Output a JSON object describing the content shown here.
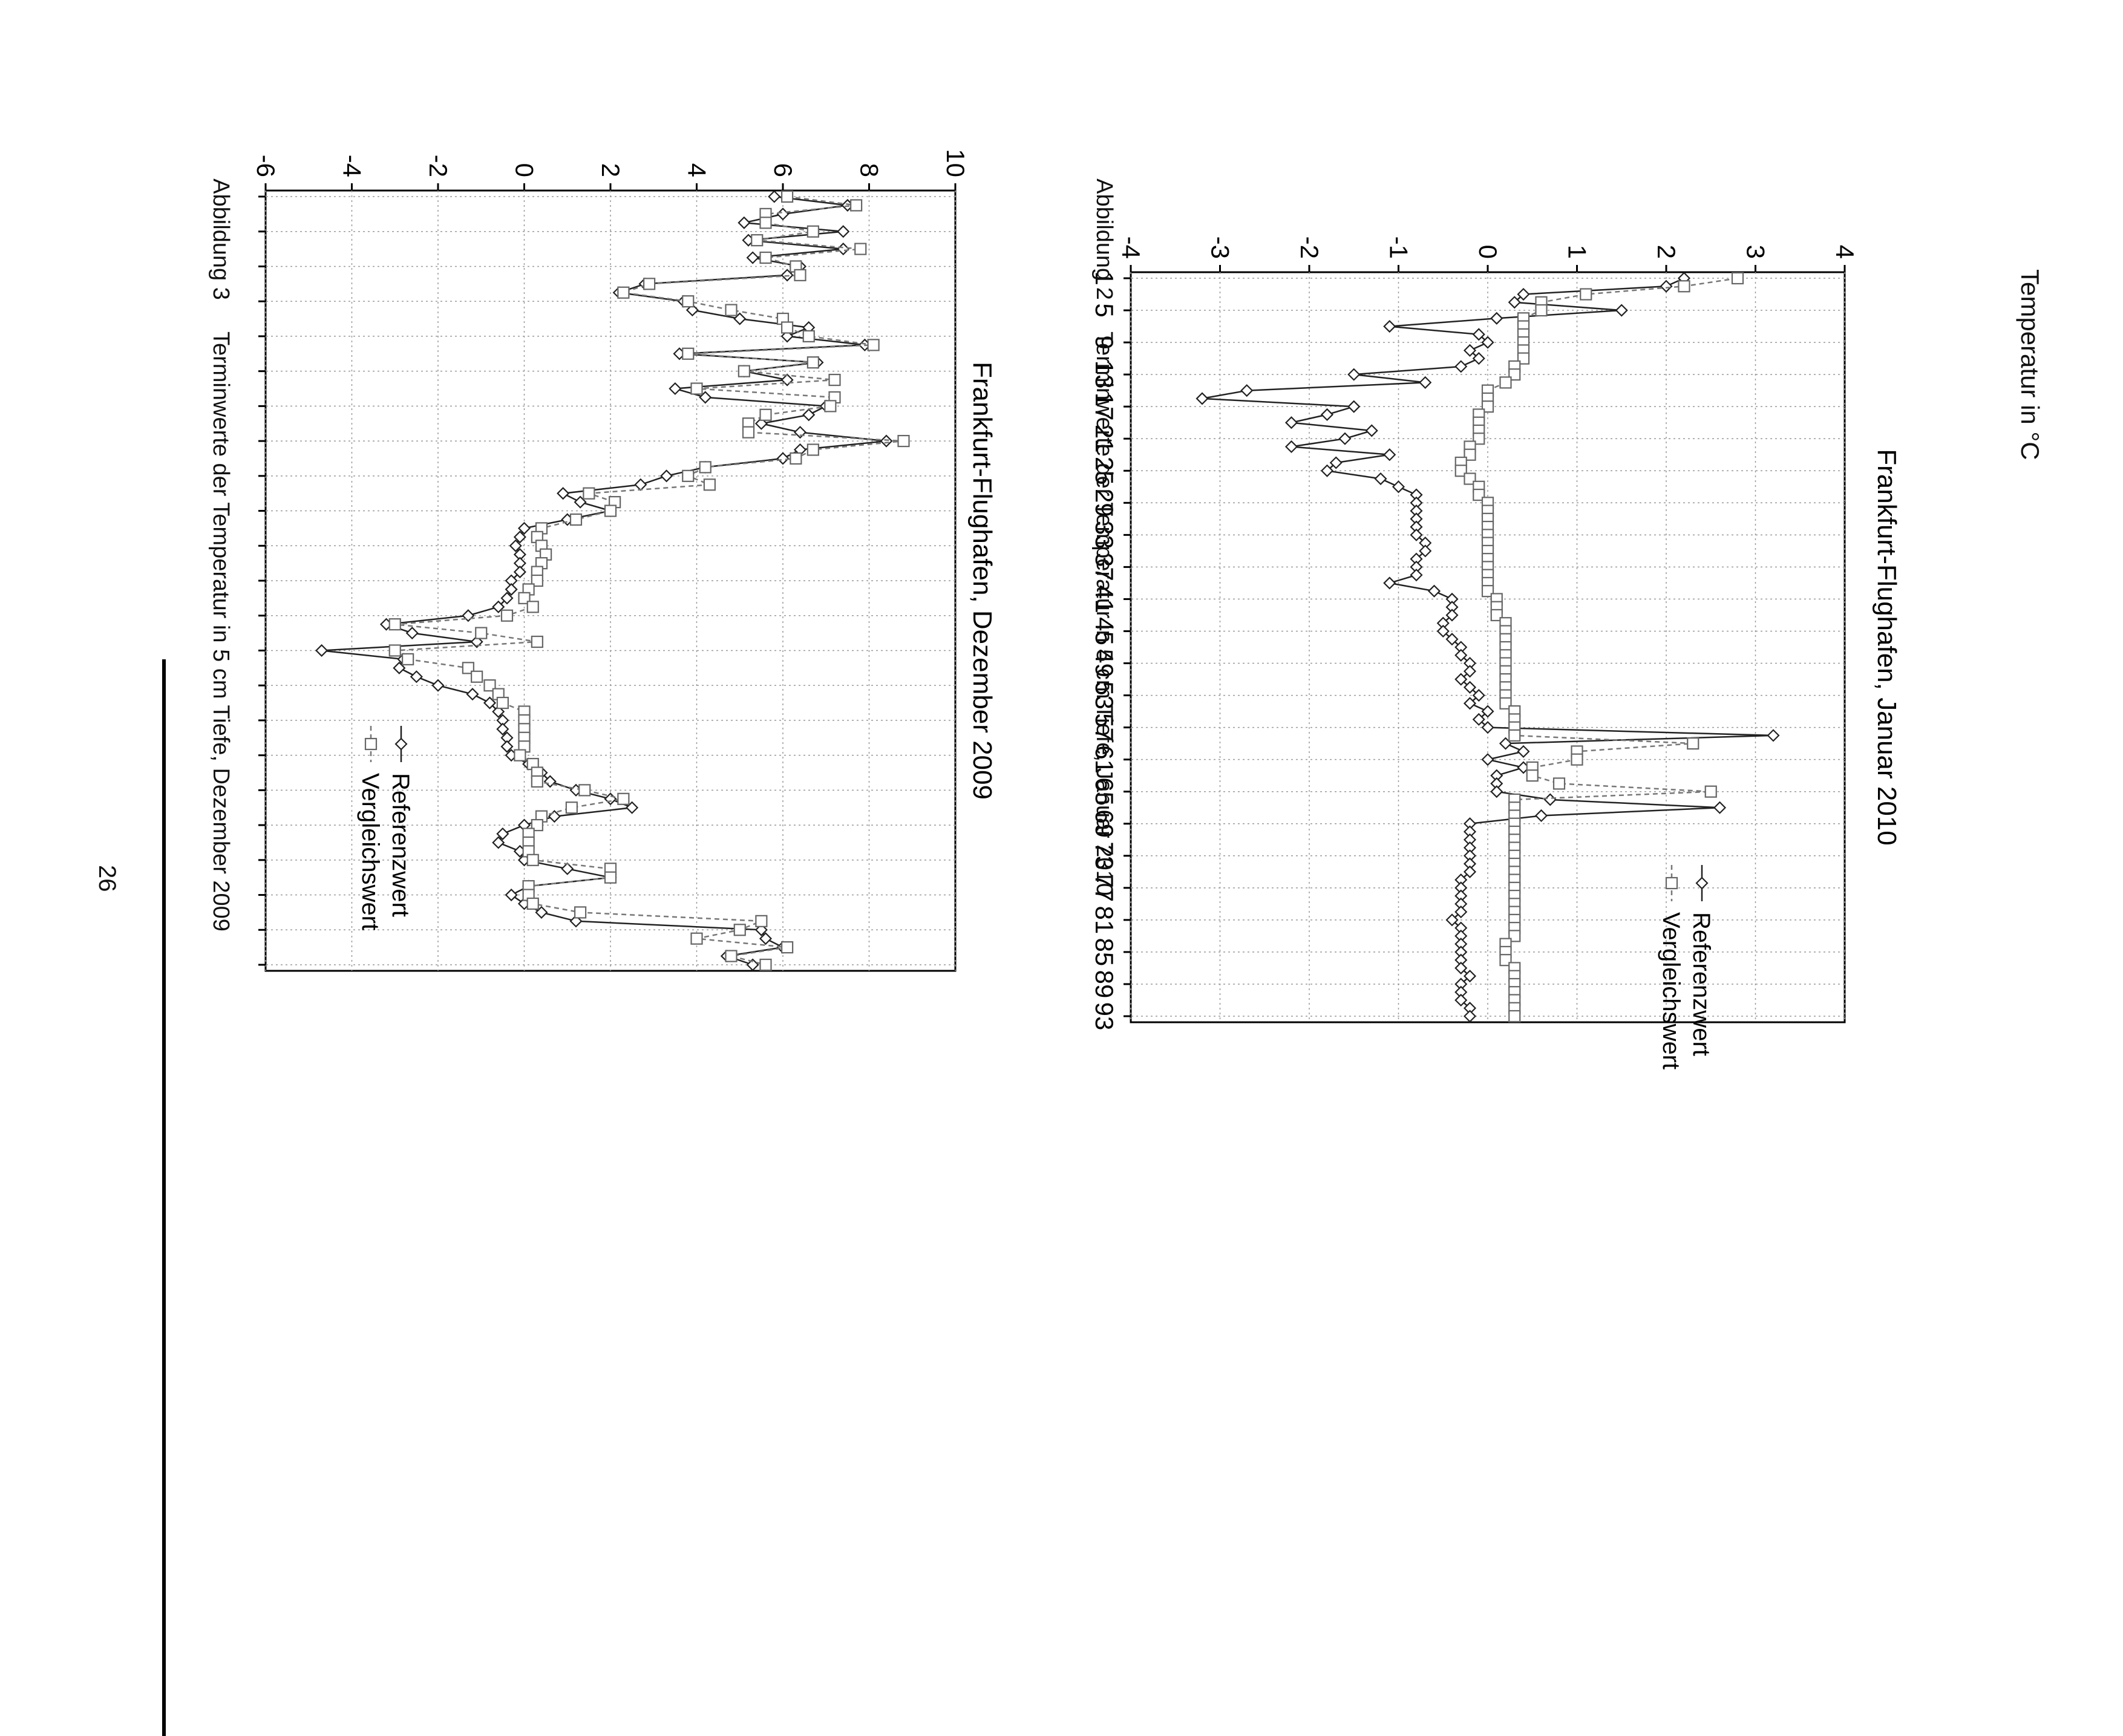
{
  "page": {
    "number": "26"
  },
  "chart_data": [
    {
      "type": "line",
      "title": "Frankfurt-Flughafen, Januar 2010",
      "ylabel": "Temperatur in °C",
      "xlabel": "",
      "caption_label": "Abbildung 2",
      "caption_text": "Terminwerte der Temperatur in 5 cm Tiefe, Januar 2010",
      "ylim": [
        -4,
        4
      ],
      "yticks": [
        "-4",
        "-3",
        "-2",
        "-1",
        "0",
        "1",
        "2",
        "3",
        "4"
      ],
      "xticks": [
        "1",
        "5",
        "9",
        "13",
        "17",
        "21",
        "25",
        "29",
        "33",
        "37",
        "41",
        "45",
        "49",
        "53",
        "57",
        "61",
        "65",
        "69",
        "73",
        "77",
        "81",
        "85",
        "89",
        "93"
      ],
      "xrange": [
        1,
        93
      ],
      "legend_position": "top-right",
      "series": [
        {
          "name": "Referenzwert",
          "style": "solid-diamond",
          "x": [
            1,
            2,
            3,
            4,
            5,
            6,
            7,
            8,
            9,
            10,
            11,
            12,
            13,
            14,
            15,
            16,
            17,
            18,
            19,
            20,
            21,
            22,
            23,
            24,
            25,
            26,
            27,
            28,
            29,
            30,
            31,
            32,
            33,
            34,
            35,
            36,
            37,
            38,
            39,
            40,
            41,
            42,
            43,
            44,
            45,
            46,
            47,
            48,
            49,
            50,
            51,
            52,
            53,
            54,
            55,
            56,
            57,
            58,
            59,
            60,
            61,
            62,
            63,
            64,
            65,
            66,
            67,
            68,
            69,
            70,
            71,
            72,
            73,
            74,
            75,
            76,
            77,
            78,
            79,
            80,
            81,
            82,
            83,
            84,
            85,
            86,
            87,
            88,
            89,
            90,
            91,
            92,
            93
          ],
          "values": [
            2.2,
            2.0,
            0.4,
            0.3,
            1.5,
            0.1,
            -1.1,
            -0.1,
            0.0,
            -0.2,
            -0.1,
            -0.3,
            -1.5,
            -0.7,
            -2.7,
            -3.2,
            -1.5,
            -1.8,
            -2.2,
            -1.3,
            -1.6,
            -2.2,
            -1.1,
            -1.7,
            -1.8,
            -1.2,
            -1.0,
            -0.8,
            -0.8,
            -0.8,
            -0.8,
            -0.8,
            -0.8,
            -0.7,
            -0.7,
            -0.8,
            -0.8,
            -0.8,
            -1.1,
            -0.6,
            -0.4,
            -0.4,
            -0.4,
            -0.5,
            -0.5,
            -0.4,
            -0.3,
            -0.3,
            -0.2,
            -0.2,
            -0.3,
            -0.2,
            -0.1,
            -0.2,
            0.0,
            -0.1,
            0.0,
            3.2,
            0.2,
            0.4,
            0.0,
            0.4,
            0.1,
            0.1,
            0.1,
            0.7,
            2.6,
            0.6,
            -0.2,
            -0.2,
            -0.2,
            -0.2,
            -0.2,
            -0.2,
            -0.2,
            -0.3,
            -0.3,
            -0.3,
            -0.3,
            -0.3,
            -0.4,
            -0.3,
            -0.3,
            -0.3,
            -0.3,
            -0.3,
            -0.3,
            -0.2,
            -0.3,
            -0.3,
            -0.3,
            -0.2,
            -0.2
          ]
        },
        {
          "name": "Vergleichswert",
          "style": "dashed-square",
          "x": [
            1,
            2,
            3,
            4,
            5,
            6,
            7,
            8,
            9,
            10,
            11,
            12,
            13,
            14,
            15,
            16,
            17,
            18,
            19,
            20,
            21,
            22,
            23,
            24,
            25,
            26,
            27,
            28,
            29,
            30,
            31,
            32,
            33,
            34,
            35,
            36,
            37,
            38,
            39,
            40,
            41,
            42,
            43,
            44,
            45,
            46,
            47,
            48,
            49,
            50,
            51,
            52,
            53,
            54,
            55,
            56,
            57,
            58,
            59,
            60,
            61,
            62,
            63,
            64,
            65,
            66,
            67,
            68,
            69,
            70,
            71,
            72,
            73,
            74,
            75,
            76,
            77,
            78,
            79,
            80,
            81,
            82,
            83,
            84,
            85,
            86,
            87,
            88,
            89,
            90,
            91,
            92,
            93
          ],
          "values": [
            2.8,
            2.2,
            1.1,
            0.6,
            0.6,
            0.4,
            0.4,
            0.4,
            0.4,
            0.4,
            0.4,
            0.3,
            0.3,
            0.2,
            0.0,
            0.0,
            0.0,
            -0.1,
            -0.1,
            -0.1,
            -0.1,
            -0.2,
            -0.2,
            -0.3,
            -0.3,
            -0.2,
            -0.1,
            -0.1,
            0.0,
            0.0,
            0.0,
            0.0,
            0.0,
            0.0,
            0.0,
            0.0,
            0.0,
            0.0,
            0.0,
            0.0,
            0.1,
            0.1,
            0.1,
            0.2,
            0.2,
            0.2,
            0.2,
            0.2,
            0.2,
            0.2,
            0.2,
            0.2,
            0.2,
            0.2,
            0.3,
            0.3,
            0.3,
            0.3,
            2.3,
            1.0,
            1.0,
            0.5,
            0.5,
            0.8,
            2.5,
            0.3,
            0.3,
            0.3,
            0.3,
            0.3,
            0.3,
            0.3,
            0.3,
            0.3,
            0.3,
            0.3,
            0.3,
            0.3,
            0.3,
            0.3,
            0.3,
            0.3,
            0.3,
            0.2,
            0.2,
            0.2,
            0.3,
            0.3,
            0.3,
            0.3,
            0.3,
            0.3,
            0.3
          ]
        }
      ]
    },
    {
      "type": "line",
      "title": "Frankfurt-Flughafen, Dezember 2009",
      "ylabel": "",
      "xlabel": "",
      "caption_label": "Abbildung 3",
      "caption_text": "Terminwerte der Temperatur in 5 cm Tiefe, Dezember 2009",
      "ylim": [
        -6,
        10
      ],
      "yticks": [
        "-6",
        "-4",
        "-2",
        "0",
        "2",
        "4",
        "6",
        "8",
        "10"
      ],
      "xticks": [
        "1",
        "5",
        "9",
        "13",
        "17",
        "21",
        "25",
        "29",
        "33",
        "37",
        "41",
        "45",
        "49",
        "53",
        "57",
        "61",
        "65",
        "69",
        "73",
        "77",
        "81",
        "85",
        "89"
      ],
      "xrange": [
        1,
        89
      ],
      "legend_position": "center",
      "series": [
        {
          "name": "Referenzwert",
          "style": "solid-diamond",
          "x": [
            1,
            2,
            3,
            4,
            5,
            6,
            7,
            8,
            9,
            10,
            11,
            12,
            13,
            14,
            15,
            16,
            17,
            18,
            19,
            20,
            21,
            22,
            23,
            24,
            25,
            26,
            27,
            28,
            29,
            30,
            31,
            32,
            33,
            34,
            35,
            36,
            37,
            38,
            39,
            40,
            41,
            42,
            43,
            44,
            45,
            46,
            47,
            48,
            49,
            50,
            51,
            52,
            53,
            54,
            55,
            56,
            57,
            58,
            59,
            60,
            61,
            62,
            63,
            64,
            65,
            66,
            67,
            68,
            69,
            70,
            71,
            72,
            73,
            74,
            75,
            76,
            77,
            78,
            79,
            80,
            81,
            82,
            83,
            84,
            85,
            86,
            87,
            88,
            89
          ],
          "values": [
            5.8,
            7.5,
            6.0,
            5.1,
            7.4,
            5.2,
            7.4,
            5.3,
            6.4,
            6.1,
            2.8,
            2.2,
            3.7,
            3.9,
            5.0,
            6.6,
            6.1,
            7.9,
            3.6,
            6.8,
            5.1,
            6.1,
            3.5,
            4.2,
            7.0,
            6.6,
            5.5,
            6.4,
            8.4,
            6.4,
            6.0,
            4.2,
            3.3,
            2.7,
            0.9,
            1.3,
            2.0,
            1.0,
            0.0,
            -0.1,
            -0.2,
            -0.1,
            -0.1,
            -0.1,
            -0.3,
            -0.3,
            -0.4,
            -0.6,
            -1.3,
            -3.2,
            -2.6,
            -1.1,
            -4.7,
            -2.8,
            -2.9,
            -2.5,
            -2.0,
            -1.2,
            -0.8,
            -0.6,
            -0.5,
            -0.5,
            -0.4,
            -0.4,
            -0.3,
            0.1,
            0.4,
            0.6,
            1.2,
            2.0,
            2.5,
            0.7,
            0.0,
            -0.5,
            -0.6,
            -0.1,
            0.0,
            1.0,
            2.0,
            0.1,
            -0.3,
            0.0,
            0.4,
            1.2,
            5.5,
            5.6,
            6.0,
            4.7,
            5.3
          ]
        },
        {
          "name": "Vergleichswert",
          "style": "dashed-square",
          "x": [
            1,
            2,
            3,
            4,
            5,
            6,
            7,
            8,
            9,
            10,
            11,
            12,
            13,
            14,
            15,
            16,
            17,
            18,
            19,
            20,
            21,
            22,
            23,
            24,
            25,
            26,
            27,
            28,
            29,
            30,
            31,
            32,
            33,
            34,
            35,
            36,
            37,
            38,
            39,
            40,
            41,
            42,
            43,
            44,
            45,
            46,
            47,
            48,
            49,
            50,
            51,
            52,
            53,
            54,
            55,
            56,
            57,
            58,
            59,
            60,
            61,
            62,
            63,
            64,
            65,
            66,
            67,
            68,
            69,
            70,
            71,
            72,
            73,
            74,
            75,
            76,
            77,
            78,
            79,
            80,
            81,
            82,
            83,
            84,
            85,
            86,
            87,
            88,
            89
          ],
          "values": [
            6.1,
            7.7,
            5.6,
            5.6,
            6.7,
            5.4,
            7.8,
            5.6,
            6.3,
            6.4,
            2.9,
            2.3,
            3.8,
            4.8,
            6.0,
            6.1,
            6.6,
            8.1,
            3.8,
            6.7,
            5.1,
            7.2,
            4.0,
            7.2,
            7.1,
            5.6,
            5.2,
            5.2,
            8.8,
            6.7,
            6.3,
            4.2,
            3.8,
            4.3,
            1.5,
            2.1,
            2.0,
            1.2,
            0.4,
            0.3,
            0.4,
            0.5,
            0.4,
            0.3,
            0.3,
            0.1,
            0.0,
            0.2,
            -0.4,
            -3.0,
            -1.0,
            0.3,
            -3.0,
            -2.7,
            -1.3,
            -1.1,
            -0.8,
            -0.6,
            -0.5,
            0.0,
            0.0,
            0.0,
            0.0,
            0.0,
            -0.1,
            0.2,
            0.3,
            0.3,
            1.4,
            2.3,
            1.1,
            0.4,
            0.3,
            0.1,
            0.1,
            0.1,
            0.2,
            2.0,
            2.0,
            0.1,
            0.1,
            0.2,
            1.3,
            5.5,
            5.0,
            4.0,
            6.1,
            4.8,
            5.6
          ]
        }
      ]
    }
  ]
}
